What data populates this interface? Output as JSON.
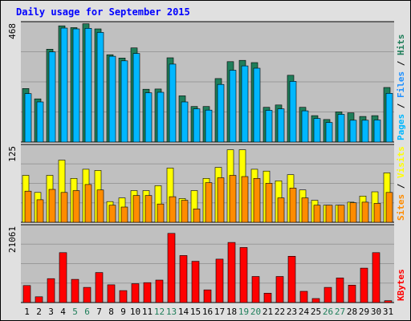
{
  "chart_data": {
    "type": "bar",
    "title": "Daily usage for September 2015",
    "categories": [
      "1",
      "2",
      "3",
      "4",
      "5",
      "6",
      "7",
      "8",
      "9",
      "10",
      "11",
      "12",
      "13",
      "14",
      "15",
      "16",
      "17",
      "18",
      "19",
      "20",
      "21",
      "22",
      "23",
      "24",
      "25",
      "26",
      "27",
      "28",
      "29",
      "30",
      "31"
    ],
    "weekend_days": [
      "5",
      "6",
      "12",
      "13",
      "19",
      "20",
      "26",
      "27"
    ],
    "panels": [
      {
        "id": "hits-files-pages",
        "ymax": 468,
        "ymax_label": "468",
        "legend": [
          "Pages",
          "Files",
          "Hits"
        ],
        "series": [
          {
            "name": "Hits",
            "color": "#1f7e5a",
            "values": [
              211,
              170,
              366,
              458,
              451,
              466,
              446,
              344,
              331,
              371,
              208,
              209,
              332,
              182,
              140,
              140,
              250,
              317,
              322,
              313,
              137,
              146,
              263,
              137,
              104,
              89,
              119,
              115,
              101,
              104,
              215
            ]
          },
          {
            "name": "Files",
            "color": "#1e90ff",
            "values": [
              0,
              0,
              0,
              0,
              0,
              0,
              0,
              0,
              0,
              0,
              0,
              0,
              0,
              0,
              0,
              0,
              0,
              0,
              0,
              0,
              0,
              0,
              0,
              0,
              0,
              0,
              0,
              0,
              0,
              0,
              0
            ]
          },
          {
            "name": "Pages",
            "color": "#00b7ff",
            "values": [
              191,
              158,
              355,
              449,
              446,
              448,
              432,
              338,
              320,
              349,
              194,
              196,
              307,
              158,
              131,
              126,
              227,
              283,
              300,
              291,
              125,
              131,
              239,
              123,
              93,
              77,
              109,
              86,
              86,
              87,
              192
            ]
          }
        ]
      },
      {
        "id": "visits-sites",
        "ymax": 125,
        "ymax_label": "125",
        "legend": [
          "Sites",
          "Visits"
        ],
        "series": [
          {
            "name": "Visits",
            "color": "#ffff00",
            "values": [
              77,
              49,
              77,
              102,
              72,
              87,
              85,
              34,
              40,
              52,
              52,
              60,
              89,
              39,
              52,
              72,
              90,
              119,
              119,
              87,
              84,
              68,
              78,
              53,
              36,
              28,
              28,
              33,
              43,
              50,
              81
            ]
          },
          {
            "name": "Sites",
            "color": "#ff8c00",
            "values": [
              51,
              37,
              54,
              49,
              52,
              62,
              53,
              28,
              25,
              44,
              44,
              30,
              42,
              36,
              22,
              65,
              73,
              77,
              75,
              72,
              64,
              40,
              56,
              40,
              28,
              28,
              28,
              32,
              33,
              31,
              49
            ]
          }
        ]
      },
      {
        "id": "kbytes",
        "ymax": 21061,
        "ymax_label": "21061",
        "legend": [
          "KBytes"
        ],
        "series": [
          {
            "name": "KBytes",
            "color": "#ff0000",
            "values": [
              4700,
              1600,
              6600,
              13800,
              6400,
              4200,
              8300,
              4900,
              3300,
              5200,
              5500,
              6200,
              19100,
              13000,
              11400,
              3500,
              12000,
              16600,
              15200,
              7200,
              2600,
              7200,
              12800,
              3100,
              1100,
              4200,
              6800,
              4800,
              9500,
              13800,
              500
            ]
          }
        ]
      }
    ]
  },
  "colors": {
    "title": "#0000ff",
    "panel_bg": "#c0c0c0",
    "frame_bg": "#e0e0e0",
    "label_pages": "#00b7ff",
    "label_files": "#1e90ff",
    "label_hits": "#1f7e5a",
    "label_sites": "#ff8c00",
    "label_visits": "#ffff00",
    "label_kbytes": "#ff0000",
    "weekend_text": "#1f7e5a",
    "weekday_text": "#000000",
    "separator": "#000000"
  }
}
